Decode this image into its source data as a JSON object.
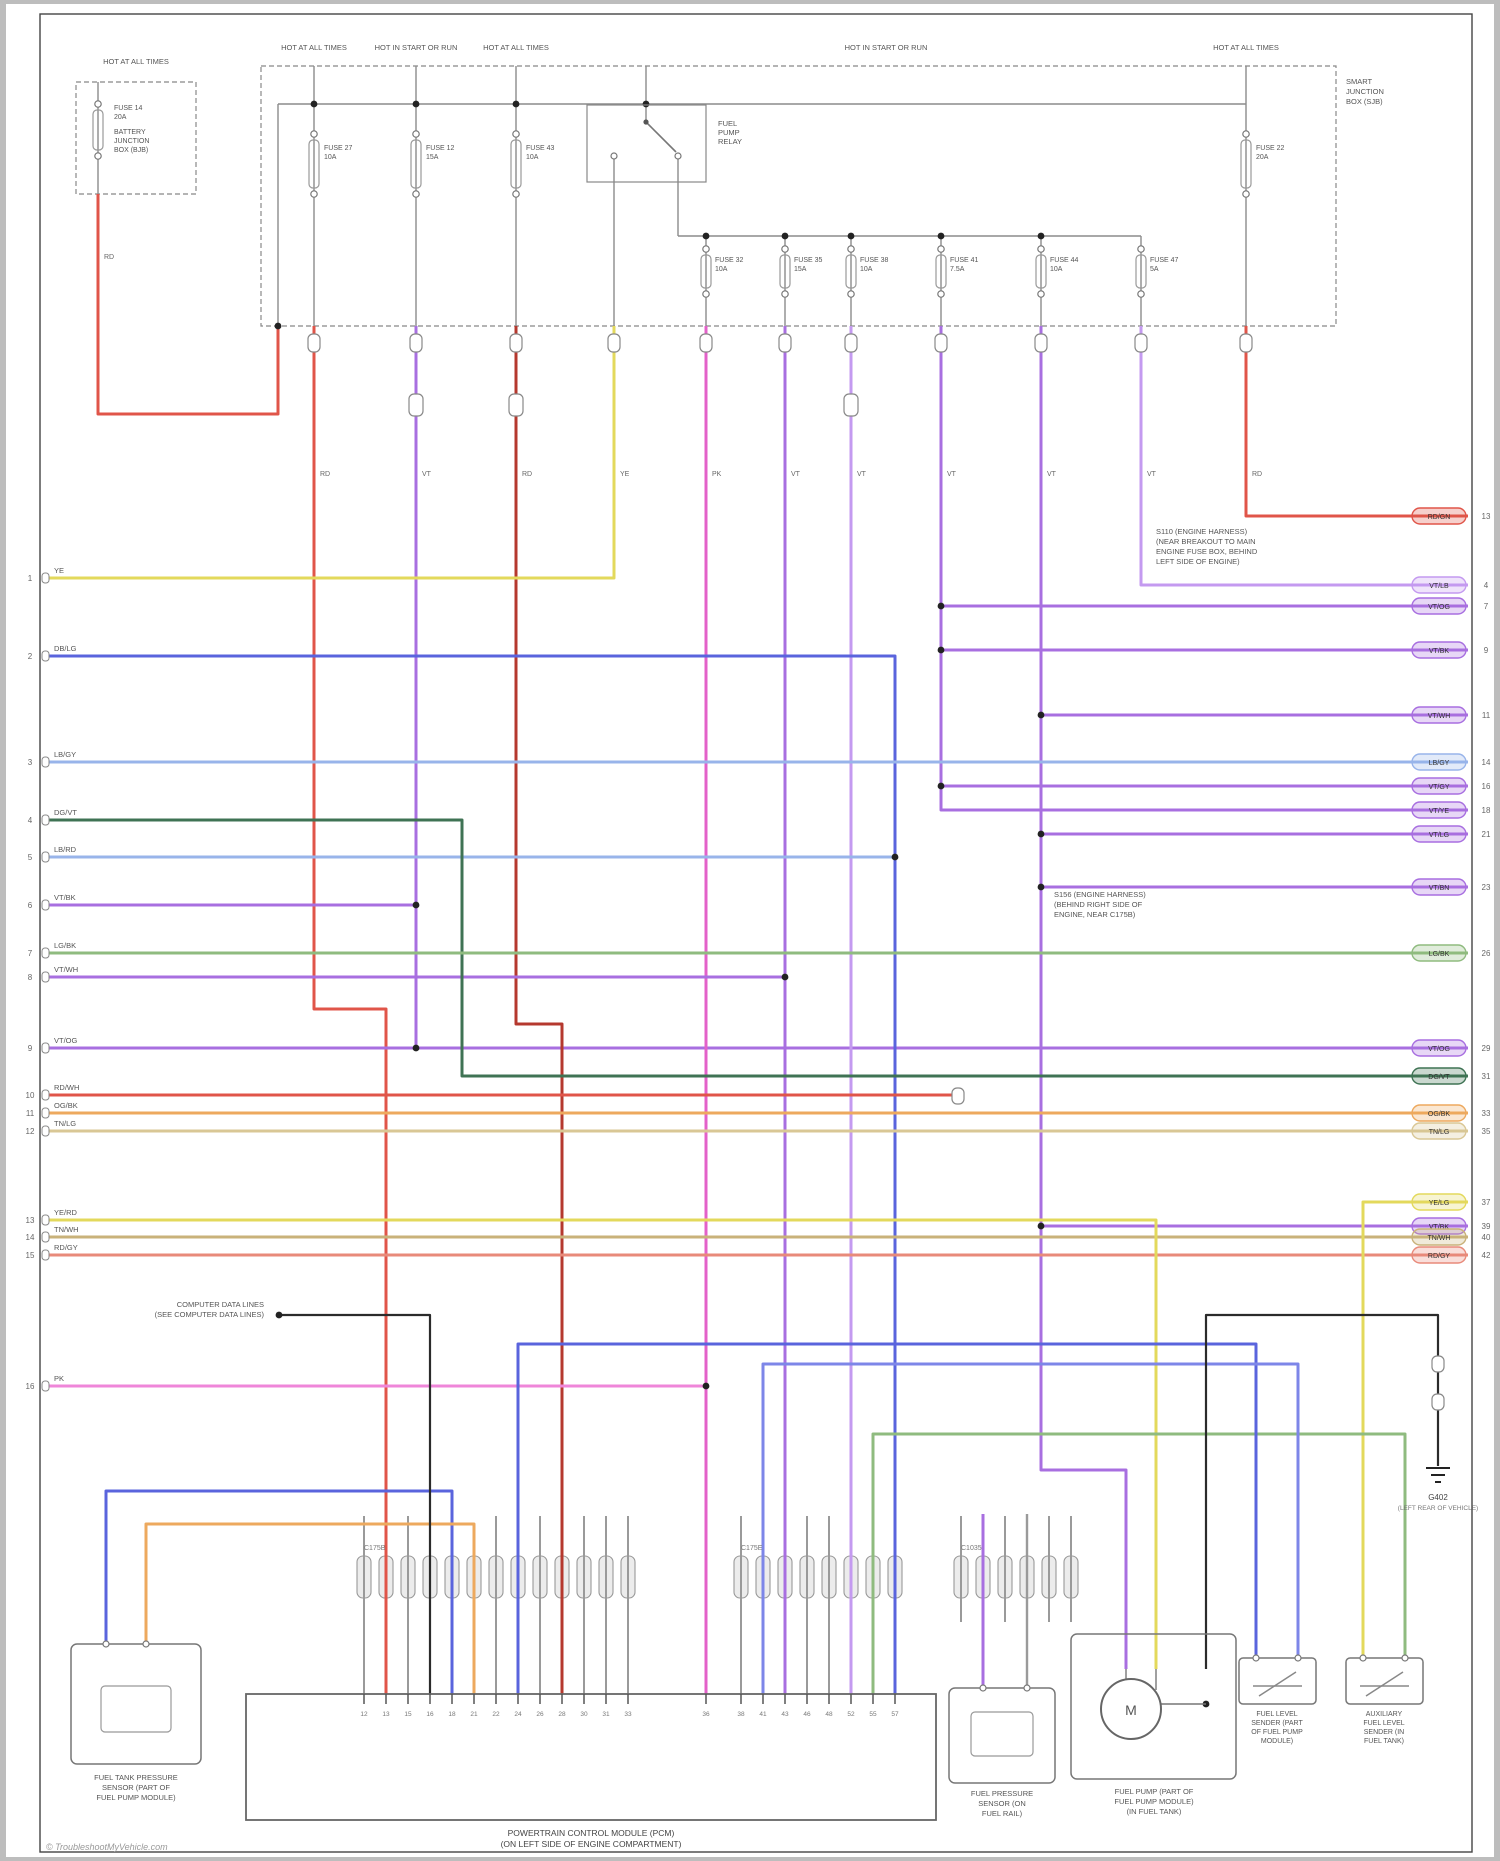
{
  "diagram": {
    "footer": "© TroubleshootMyVehicle.com",
    "power_labels": [
      "HOT AT ALL TIMES",
      "HOT AT ALL TIMES",
      "HOT IN START OR RUN",
      "HOT AT ALL TIMES",
      "HOT IN START OR RUN",
      "HOT AT ALL TIMES"
    ],
    "boxes": {
      "bjb": {
        "title_lines": [
          "BATTERY",
          "JUNCTION",
          "BOX (BJB)"
        ],
        "fuse": {
          "name": "FUSE 14",
          "amp": "20A"
        }
      },
      "sjb": {
        "title_lines": [
          "SMART",
          "JUNCTION",
          "BOX (SJB)"
        ]
      }
    },
    "relay": {
      "lines": [
        "FUEL",
        "PUMP",
        "RELAY"
      ]
    },
    "fuses_upper": [
      {
        "name": "FUSE 27",
        "amp": "10A"
      },
      {
        "name": "FUSE 12",
        "amp": "15A"
      },
      {
        "name": "FUSE 43",
        "amp": "10A"
      },
      {
        "name": "FUSE 22",
        "amp": "20A"
      }
    ],
    "fuses_lower": [
      {
        "name": "FUSE 32",
        "amp": "10A"
      },
      {
        "name": "FUSE 35",
        "amp": "15A"
      },
      {
        "name": "FUSE 38",
        "amp": "10A"
      },
      {
        "name": "FUSE 41",
        "amp": "7.5A"
      },
      {
        "name": "FUSE 44",
        "amp": "10A"
      },
      {
        "name": "FUSE 47",
        "amp": "5A"
      }
    ],
    "splices": {
      "s1_lines": [
        "S110 (ENGINE HARNESS)",
        "(NEAR BREAKOUT TO MAIN",
        "ENGINE FUSE BOX, BEHIND",
        "LEFT SIDE OF ENGINE)"
      ],
      "s2_lines": [
        "S156 (ENGINE HARNESS)",
        "(BEHIND RIGHT SIDE OF",
        "ENGINE, NEAR C175B)"
      ]
    },
    "data_lines_note": [
      "COMPUTER DATA LINES",
      "(SEE COMPUTER DATA LINES)"
    ],
    "ground": {
      "name": "G402",
      "note": "(LEFT REAR OF VEHICLE)"
    },
    "connector_codes": [
      "C175B",
      "C175E",
      "C1035"
    ],
    "vertical_wire_codes": [
      "RD",
      "VT",
      "RD",
      "YE",
      "PK",
      "VT",
      "VT",
      "VT",
      "VT",
      "VT",
      "RD"
    ],
    "feed_code": "RD",
    "left_pins": [
      {
        "pin": "1",
        "code": "YE"
      },
      {
        "pin": "2",
        "code": "DB/LG"
      },
      {
        "pin": "3",
        "code": "LB/GY"
      },
      {
        "pin": "4",
        "code": "DG/VT"
      },
      {
        "pin": "5",
        "code": "LB/RD"
      },
      {
        "pin": "6",
        "code": "VT/BK"
      },
      {
        "pin": "7",
        "code": "LG/BK"
      },
      {
        "pin": "8",
        "code": "VT/WH"
      },
      {
        "pin": "9",
        "code": "VT/OG"
      },
      {
        "pin": "10",
        "code": "RD/WH"
      },
      {
        "pin": "11",
        "code": "OG/BK"
      },
      {
        "pin": "12",
        "code": "TN/LG"
      },
      {
        "pin": "13",
        "code": "YE/RD"
      },
      {
        "pin": "14",
        "code": "TN/WH"
      },
      {
        "pin": "15",
        "code": "RD/GY"
      },
      {
        "pin": "16",
        "code": "PK"
      }
    ],
    "right_pins": [
      {
        "pin": "13",
        "code": "RD/GN"
      },
      {
        "pin": "4",
        "code": "VT/LB"
      },
      {
        "pin": "7",
        "code": "VT/OG"
      },
      {
        "pin": "9",
        "code": "VT/BK"
      },
      {
        "pin": "11",
        "code": "VT/WH"
      },
      {
        "pin": "14",
        "code": "LB/GY"
      },
      {
        "pin": "16",
        "code": "VT/GY"
      },
      {
        "pin": "18",
        "code": "VT/YE"
      },
      {
        "pin": "21",
        "code": "VT/LG"
      },
      {
        "pin": "23",
        "code": "VT/BN"
      },
      {
        "pin": "26",
        "code": "LG/BK"
      },
      {
        "pin": "29",
        "code": "VT/OG"
      },
      {
        "pin": "31",
        "code": "DG/VT"
      },
      {
        "pin": "33",
        "code": "OG/BK"
      },
      {
        "pin": "35",
        "code": "TN/LG"
      },
      {
        "pin": "37",
        "code": "YE/LG"
      },
      {
        "pin": "39",
        "code": "VT/BK"
      },
      {
        "pin": "40",
        "code": "TN/WH"
      },
      {
        "pin": "42",
        "code": "RD/GY"
      }
    ],
    "pcm_pins": [
      "12",
      "13",
      "15",
      "16",
      "18",
      "21",
      "22",
      "24",
      "26",
      "28",
      "30",
      "31",
      "33",
      "36",
      "38",
      "41",
      "43",
      "46",
      "48",
      "52",
      "55",
      "57"
    ],
    "components": {
      "ftps_lines": [
        "FUEL TANK PRESSURE",
        "SENSOR (PART OF",
        "FUEL PUMP MODULE)"
      ],
      "pcm_lines": [
        "POWERTRAIN CONTROL MODULE (PCM)",
        "(ON LEFT SIDE OF ENGINE COMPARTMENT)"
      ],
      "fps_lines": [
        "FUEL PRESSURE",
        "SENSOR (ON",
        "FUEL RAIL)"
      ],
      "pump_lines": [
        "FUEL PUMP (PART OF",
        "FUEL PUMP MODULE)",
        "(IN FUEL TANK)"
      ],
      "pump_symbol": "M",
      "m1_lines": [
        "FUEL LEVEL",
        "SENDER (PART",
        "OF FUEL PUMP",
        "MODULE)"
      ],
      "m2_lines": [
        "AUXILIARY",
        "FUEL LEVEL",
        "SENDER (IN",
        "FUEL TANK)"
      ]
    },
    "colors": {
      "red": "#e05549",
      "dred": "#b5382e",
      "salmon": "#e88a7a",
      "yellow": "#e3d95c",
      "pinkmag": "#e361c9",
      "pink": "#ef86d9",
      "violet": "#a86fe0",
      "lviolet": "#c49af0",
      "blue": "#5a64dd",
      "blue2": "#7d86e8",
      "lblue": "#98b4ea",
      "green": "#8fbb7f",
      "dgreen": "#3f7354",
      "orange": "#eda95e",
      "tan": "#d9c795",
      "tan2": "#c9b27a",
      "black": "#2b2b2b",
      "gray2": "#9a9a9a",
      "structure": "#8c8c8c"
    }
  }
}
